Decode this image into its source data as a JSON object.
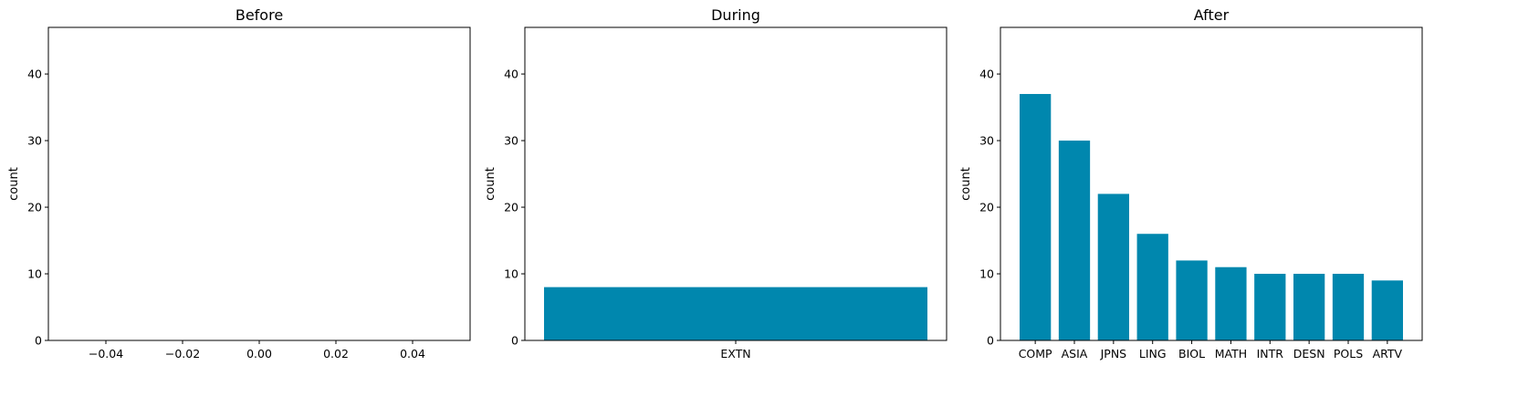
{
  "bar_color": "#0087ae",
  "chart_data": [
    {
      "type": "bar",
      "title": "Before",
      "ylabel": "count",
      "ylim": [
        0,
        47
      ],
      "yticks": [
        0,
        10,
        20,
        30,
        40
      ],
      "xlim": [
        -0.055,
        0.055
      ],
      "xticks": [
        -0.04,
        -0.02,
        0.0,
        0.02,
        0.04
      ],
      "xtick_labels": [
        "−0.04",
        "−0.02",
        "0.00",
        "0.02",
        "0.04"
      ],
      "categories": [],
      "values": []
    },
    {
      "type": "bar",
      "title": "During",
      "ylabel": "count",
      "ylim": [
        0,
        47
      ],
      "yticks": [
        0,
        10,
        20,
        30,
        40
      ],
      "categories": [
        "EXTN"
      ],
      "values": [
        8
      ]
    },
    {
      "type": "bar",
      "title": "After",
      "ylabel": "count",
      "ylim": [
        0,
        47
      ],
      "yticks": [
        0,
        10,
        20,
        30,
        40
      ],
      "categories": [
        "COMP",
        "ASIA",
        "JPNS",
        "LING",
        "BIOL",
        "MATH",
        "INTR",
        "DESN",
        "POLS",
        "ARTV"
      ],
      "values": [
        37,
        30,
        22,
        16,
        12,
        11,
        10,
        10,
        10,
        9
      ]
    }
  ]
}
